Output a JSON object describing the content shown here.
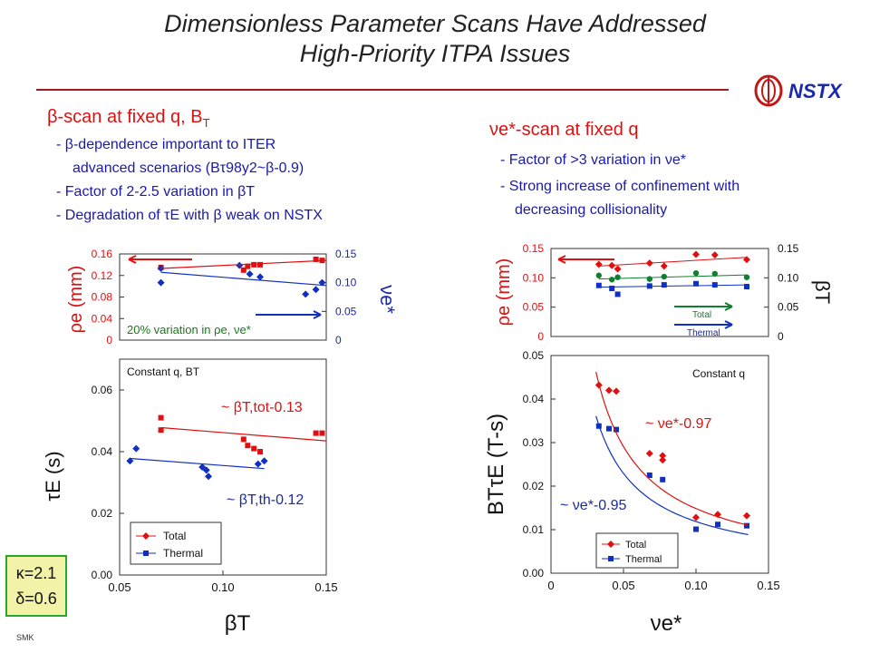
{
  "title": {
    "line1": "Dimensionless Parameter Scans Have Addressed",
    "line2": "High-Priority ITPA Issues"
  },
  "logo": {
    "text": "NSTX",
    "icon": "nstx-logo-icon"
  },
  "left_section": {
    "heading": "β-scan at fixed q, B",
    "heading_sub": "T",
    "bullets": [
      "- β-dependence important to ITER",
      "advanced scenarios (Bτ98y2~β-0.9)",
      "- Factor of 2-2.5 variation in βT",
      "- Degradation of τE with β weak on NSTX"
    ]
  },
  "right_section": {
    "heading": "νe*-scan at fixed q",
    "bullets": [
      "- Factor of >3 variation in νe*",
      "- Strong increase of confinement with",
      "decreasing collisionality"
    ]
  },
  "kappa_box": {
    "line1": "κ=2.1",
    "line2": "δ=0.6"
  },
  "footer": {
    "text": "SMK"
  },
  "chart_data": [
    {
      "type": "scatter",
      "title": "",
      "xlabel": "βT",
      "ylabel": "ρe (mm)",
      "y2label": "νe*",
      "xlim": [
        0.05,
        0.15
      ],
      "ylim": [
        0,
        0.16
      ],
      "y2lim": [
        0,
        0.15
      ],
      "yticks": [
        "0",
        "0.04",
        "0.08",
        "0.12",
        "0.16"
      ],
      "y2ticks": [
        "0",
        "0.05",
        "0.10",
        "0.15"
      ],
      "annotation": "20% variation in ρe, νe*",
      "series": [
        {
          "color": "#e01010",
          "marker": "square",
          "x": [
            0.07,
            0.11,
            0.112,
            0.115,
            0.118,
            0.145,
            0.148
          ],
          "y": [
            0.135,
            0.13,
            0.137,
            0.14,
            0.14,
            0.15,
            0.148
          ]
        },
        {
          "color": "#1030c0",
          "marker": "diamond",
          "axis": "right",
          "x": [
            0.07,
            0.07,
            0.108,
            0.113,
            0.118,
            0.14,
            0.145,
            0.148
          ],
          "y": [
            0.125,
            0.1,
            0.13,
            0.115,
            0.11,
            0.08,
            0.088,
            0.1
          ]
        }
      ]
    },
    {
      "type": "scatter",
      "title": "Constant q, BT",
      "xlabel": "βT",
      "ylabel": "τE (s)",
      "xlim": [
        0.05,
        0.15
      ],
      "ylim": [
        0,
        0.07
      ],
      "xticks": [
        "0.05",
        "0.10",
        "0.15"
      ],
      "yticks": [
        "0.00",
        "0.02",
        "0.04",
        "0.06"
      ],
      "fit_labels": [
        "~ βT,tot-0.13",
        "~ βT,th-0.12"
      ],
      "series": [
        {
          "name": "Total",
          "color": "#e01010",
          "marker": "square",
          "x": [
            0.07,
            0.07,
            0.11,
            0.112,
            0.115,
            0.118,
            0.145,
            0.148
          ],
          "y": [
            0.051,
            0.047,
            0.044,
            0.042,
            0.041,
            0.04,
            0.046,
            0.046
          ]
        },
        {
          "name": "Thermal",
          "color": "#1030c0",
          "marker": "diamond",
          "x": [
            0.055,
            0.058,
            0.09,
            0.092,
            0.093,
            0.117,
            0.12
          ],
          "y": [
            0.037,
            0.041,
            0.035,
            0.034,
            0.032,
            0.036,
            0.037
          ]
        }
      ]
    },
    {
      "type": "scatter",
      "title": "",
      "xlabel": "νe*",
      "ylabel": "ρe (mm)",
      "y2label": "βT",
      "xlim": [
        0,
        0.15
      ],
      "ylim": [
        0,
        0.15
      ],
      "y2lim": [
        0,
        0.15
      ],
      "yticks": [
        "0",
        "0.05",
        "0.10",
        "0.15"
      ],
      "y2ticks": [
        "0",
        "0.05",
        "0.10",
        "0.15"
      ],
      "arrow_labels": [
        "Total",
        "Thermal"
      ],
      "series": [
        {
          "color": "#e01010",
          "marker": "diamond",
          "x": [
            0.033,
            0.042,
            0.046,
            0.068,
            0.078,
            0.1,
            0.113,
            0.135
          ],
          "y": [
            0.123,
            0.121,
            0.115,
            0.125,
            0.12,
            0.14,
            0.139,
            0.131
          ]
        },
        {
          "color": "#108030",
          "marker": "circle",
          "x": [
            0.033,
            0.042,
            0.046,
            0.068,
            0.078,
            0.1,
            0.113,
            0.135
          ],
          "y": [
            0.104,
            0.097,
            0.101,
            0.098,
            0.102,
            0.108,
            0.107,
            0.101
          ]
        },
        {
          "color": "#1030c0",
          "marker": "square",
          "x": [
            0.033,
            0.042,
            0.046,
            0.068,
            0.078,
            0.1,
            0.113,
            0.135
          ],
          "y": [
            0.087,
            0.082,
            0.072,
            0.086,
            0.088,
            0.09,
            0.088,
            0.085
          ]
        }
      ]
    },
    {
      "type": "scatter",
      "title": "Constant q",
      "xlabel": "νe*",
      "ylabel": "BTτE (T-s)",
      "xlim": [
        0,
        0.15
      ],
      "ylim": [
        0,
        0.05
      ],
      "xticks": [
        "0",
        "0.05",
        "0.10",
        "0.15"
      ],
      "yticks": [
        "0.00",
        "0.01",
        "0.02",
        "0.03",
        "0.04",
        "0.05"
      ],
      "fit_labels": [
        "~ νe*-0.97",
        "~ νe*-0.95"
      ],
      "series": [
        {
          "name": "Total",
          "color": "#e01010",
          "marker": "diamond",
          "x": [
            0.033,
            0.04,
            0.045,
            0.068,
            0.077,
            0.077,
            0.1,
            0.115,
            0.135
          ],
          "y": [
            0.0432,
            0.042,
            0.0418,
            0.0275,
            0.027,
            0.026,
            0.0128,
            0.0135,
            0.0132
          ]
        },
        {
          "name": "Thermal",
          "color": "#1030c0",
          "marker": "square",
          "x": [
            0.033,
            0.04,
            0.045,
            0.068,
            0.077,
            0.1,
            0.115,
            0.135
          ],
          "y": [
            0.0338,
            0.0332,
            0.033,
            0.0225,
            0.0215,
            0.0101,
            0.0112,
            0.0109
          ]
        }
      ]
    }
  ]
}
